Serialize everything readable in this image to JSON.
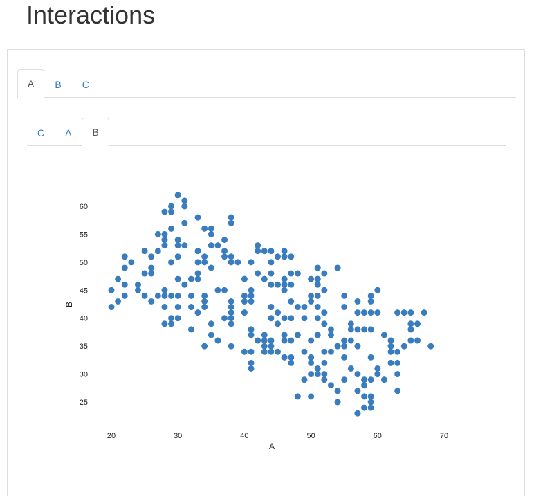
{
  "page": {
    "title": "Interactions"
  },
  "outer_tabs": [
    {
      "label": "A",
      "active": true
    },
    {
      "label": "B",
      "active": false
    },
    {
      "label": "C",
      "active": false
    }
  ],
  "inner_tabs": [
    {
      "label": "C",
      "active": false
    },
    {
      "label": "A",
      "active": false
    },
    {
      "label": "B",
      "active": true
    }
  ],
  "colors": {
    "point": "#3a7dbf",
    "tab_link": "#337ab7",
    "border": "#dddddd"
  },
  "chart_data": {
    "type": "scatter",
    "title": "",
    "xlabel": "A",
    "ylabel": "B",
    "xlim": [
      18,
      70
    ],
    "ylim": [
      22,
      63
    ],
    "xticks": [
      20,
      30,
      40,
      50,
      60,
      70
    ],
    "yticks": [
      25,
      30,
      35,
      40,
      45,
      50,
      55,
      60
    ],
    "grid": false,
    "points": [
      [
        20,
        45
      ],
      [
        20,
        42
      ],
      [
        21,
        43
      ],
      [
        21,
        47
      ],
      [
        22,
        51
      ],
      [
        22,
        49
      ],
      [
        22,
        46
      ],
      [
        22,
        44
      ],
      [
        23,
        50
      ],
      [
        24,
        46
      ],
      [
        24,
        45
      ],
      [
        25,
        52
      ],
      [
        25,
        48
      ],
      [
        25,
        44
      ],
      [
        26,
        51
      ],
      [
        26,
        49
      ],
      [
        26,
        48
      ],
      [
        26,
        43
      ],
      [
        27,
        55
      ],
      [
        27,
        52
      ],
      [
        27,
        44
      ],
      [
        28,
        59
      ],
      [
        28,
        55
      ],
      [
        28,
        54
      ],
      [
        28,
        53
      ],
      [
        28,
        45
      ],
      [
        28,
        44
      ],
      [
        28,
        42
      ],
      [
        28,
        39
      ],
      [
        29,
        60
      ],
      [
        29,
        59
      ],
      [
        29,
        56
      ],
      [
        29,
        50
      ],
      [
        29,
        44
      ],
      [
        29,
        40
      ],
      [
        29,
        39
      ],
      [
        30,
        62
      ],
      [
        30,
        54
      ],
      [
        30,
        53
      ],
      [
        30,
        51
      ],
      [
        30,
        47
      ],
      [
        30,
        44
      ],
      [
        30,
        42
      ],
      [
        30,
        40
      ],
      [
        31,
        61
      ],
      [
        31,
        60
      ],
      [
        31,
        57
      ],
      [
        31,
        53
      ],
      [
        31,
        46
      ],
      [
        32,
        47
      ],
      [
        32,
        44
      ],
      [
        32,
        42
      ],
      [
        32,
        38
      ],
      [
        33,
        58
      ],
      [
        33,
        52
      ],
      [
        33,
        50
      ],
      [
        33,
        48
      ],
      [
        33,
        47
      ],
      [
        33,
        41
      ],
      [
        34,
        56
      ],
      [
        34,
        51
      ],
      [
        34,
        50
      ],
      [
        34,
        44
      ],
      [
        34,
        43
      ],
      [
        34,
        42
      ],
      [
        34,
        35
      ],
      [
        35,
        56
      ],
      [
        35,
        55
      ],
      [
        35,
        53
      ],
      [
        35,
        49
      ],
      [
        35,
        39
      ],
      [
        35,
        37
      ],
      [
        36,
        53
      ],
      [
        36,
        45
      ],
      [
        36,
        36
      ],
      [
        37,
        54
      ],
      [
        37,
        52
      ],
      [
        37,
        51
      ],
      [
        37,
        45
      ],
      [
        37,
        40
      ],
      [
        38,
        58
      ],
      [
        38,
        57
      ],
      [
        38,
        51
      ],
      [
        38,
        50
      ],
      [
        38,
        43
      ],
      [
        38,
        42
      ],
      [
        38,
        41
      ],
      [
        38,
        40
      ],
      [
        38,
        39
      ],
      [
        38,
        35
      ],
      [
        39,
        50
      ],
      [
        40,
        47
      ],
      [
        40,
        44
      ],
      [
        40,
        43
      ],
      [
        40,
        41
      ],
      [
        40,
        34
      ],
      [
        41,
        50
      ],
      [
        41,
        45
      ],
      [
        41,
        44
      ],
      [
        41,
        43
      ],
      [
        41,
        38
      ],
      [
        41,
        37
      ],
      [
        41,
        34
      ],
      [
        41,
        32
      ],
      [
        41,
        31
      ],
      [
        42,
        53
      ],
      [
        42,
        52
      ],
      [
        42,
        48
      ],
      [
        42,
        36
      ],
      [
        43,
        52
      ],
      [
        43,
        47
      ],
      [
        43,
        37
      ],
      [
        43,
        36
      ],
      [
        43,
        35
      ],
      [
        43,
        34
      ],
      [
        44,
        52
      ],
      [
        44,
        50
      ],
      [
        44,
        48
      ],
      [
        44,
        46
      ],
      [
        44,
        42
      ],
      [
        44,
        40
      ],
      [
        44,
        36
      ],
      [
        44,
        35
      ],
      [
        44,
        34
      ],
      [
        45,
        51
      ],
      [
        45,
        46
      ],
      [
        45,
        41
      ],
      [
        45,
        39
      ],
      [
        45,
        34
      ],
      [
        46,
        52
      ],
      [
        46,
        51
      ],
      [
        46,
        47
      ],
      [
        46,
        46
      ],
      [
        46,
        45
      ],
      [
        46,
        40
      ],
      [
        46,
        37
      ],
      [
        46,
        36
      ],
      [
        46,
        33
      ],
      [
        47,
        51
      ],
      [
        47,
        48
      ],
      [
        47,
        46
      ],
      [
        47,
        43
      ],
      [
        47,
        40
      ],
      [
        47,
        36
      ],
      [
        47,
        33
      ],
      [
        47,
        32
      ],
      [
        48,
        48
      ],
      [
        48,
        42
      ],
      [
        48,
        37
      ],
      [
        48,
        26
      ],
      [
        49,
        42
      ],
      [
        49,
        40
      ],
      [
        49,
        34
      ],
      [
        49,
        29
      ],
      [
        50,
        47
      ],
      [
        50,
        44
      ],
      [
        50,
        43
      ],
      [
        50,
        36
      ],
      [
        50,
        33
      ],
      [
        50,
        32
      ],
      [
        50,
        30
      ],
      [
        50,
        26
      ],
      [
        51,
        49
      ],
      [
        51,
        47
      ],
      [
        51,
        46
      ],
      [
        51,
        44
      ],
      [
        51,
        42
      ],
      [
        51,
        40
      ],
      [
        51,
        37
      ],
      [
        51,
        31
      ],
      [
        51,
        30
      ],
      [
        52,
        48
      ],
      [
        52,
        45
      ],
      [
        52,
        41
      ],
      [
        52,
        39
      ],
      [
        52,
        34
      ],
      [
        52,
        32
      ],
      [
        52,
        30
      ],
      [
        52,
        29
      ],
      [
        53,
        38
      ],
      [
        53,
        37
      ],
      [
        53,
        34
      ],
      [
        53,
        28
      ],
      [
        54,
        49
      ],
      [
        54,
        35
      ],
      [
        54,
        27
      ],
      [
        54,
        25
      ],
      [
        55,
        44
      ],
      [
        55,
        42
      ],
      [
        55,
        36
      ],
      [
        55,
        35
      ],
      [
        55,
        33
      ],
      [
        55,
        29
      ],
      [
        56,
        39
      ],
      [
        56,
        38
      ],
      [
        56,
        36
      ],
      [
        56,
        31
      ],
      [
        57,
        43
      ],
      [
        57,
        41
      ],
      [
        57,
        38
      ],
      [
        57,
        35
      ],
      [
        57,
        30
      ],
      [
        57,
        27
      ],
      [
        57,
        23
      ],
      [
        58,
        41
      ],
      [
        58,
        38
      ],
      [
        58,
        29
      ],
      [
        58,
        28
      ],
      [
        58,
        26
      ],
      [
        58,
        24
      ],
      [
        59,
        44
      ],
      [
        59,
        43
      ],
      [
        59,
        41
      ],
      [
        59,
        38
      ],
      [
        59,
        33
      ],
      [
        59,
        29
      ],
      [
        59,
        26
      ],
      [
        59,
        25
      ],
      [
        59,
        24
      ],
      [
        60,
        45
      ],
      [
        60,
        41
      ],
      [
        60,
        31
      ],
      [
        60,
        30
      ],
      [
        61,
        37
      ],
      [
        61,
        29
      ],
      [
        62,
        36
      ],
      [
        62,
        35
      ],
      [
        62,
        34
      ],
      [
        62,
        32
      ],
      [
        63,
        41
      ],
      [
        63,
        34
      ],
      [
        63,
        32
      ],
      [
        63,
        30
      ],
      [
        63,
        27
      ],
      [
        64,
        41
      ],
      [
        64,
        35
      ],
      [
        65,
        41
      ],
      [
        65,
        39
      ],
      [
        65,
        38
      ],
      [
        65,
        36
      ],
      [
        66,
        39
      ],
      [
        66,
        36
      ],
      [
        67,
        41
      ],
      [
        68,
        35
      ]
    ]
  }
}
